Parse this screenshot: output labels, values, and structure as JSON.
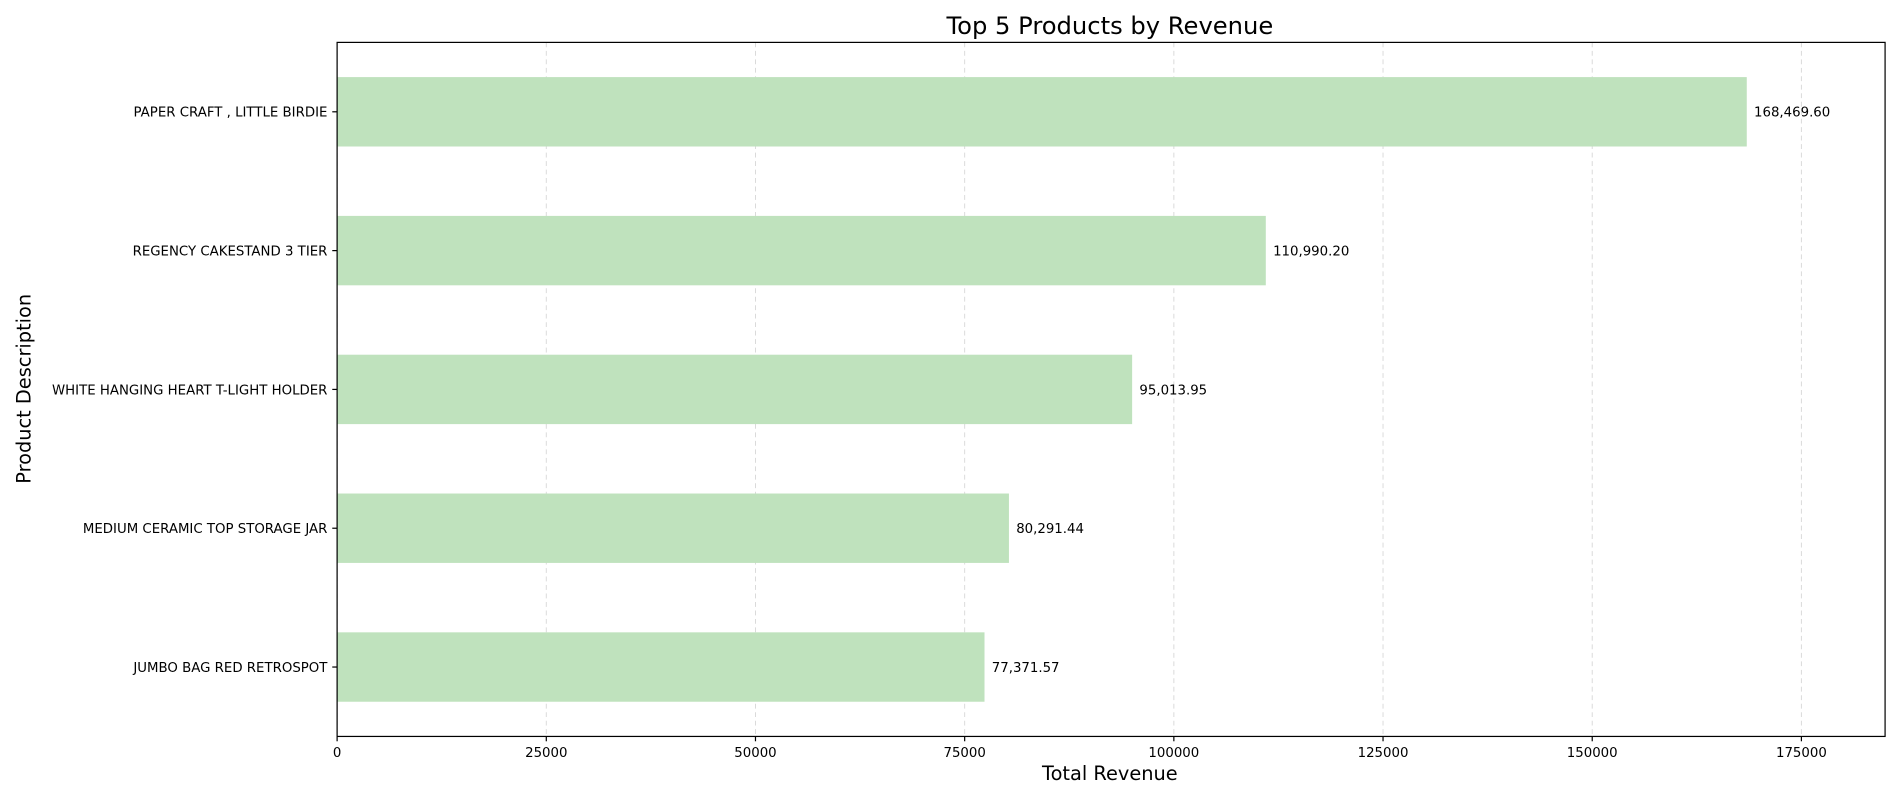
{
  "chart_data": {
    "type": "bar",
    "orientation": "horizontal",
    "title": "Top 5 Products by Revenue",
    "xlabel": "Total Revenue",
    "ylabel": "Product Description",
    "categories": [
      "PAPER CRAFT , LITTLE BIRDIE",
      "REGENCY CAKESTAND 3 TIER",
      "WHITE HANGING HEART T-LIGHT HOLDER",
      "MEDIUM CERAMIC TOP STORAGE JAR",
      "JUMBO BAG RED RETROSPOT"
    ],
    "values": [
      168469.6,
      110990.2,
      95013.95,
      80291.44,
      77371.57
    ],
    "value_labels": [
      "168,469.60",
      "110,990.20",
      "95,013.95",
      "80,291.44",
      "77,371.57"
    ],
    "xlim": [
      0,
      185000
    ],
    "xticks": [
      0,
      25000,
      50000,
      75000,
      100000,
      125000,
      150000,
      175000
    ],
    "xtick_labels": [
      "0",
      "25000",
      "50000",
      "75000",
      "100000",
      "125000",
      "150000",
      "175000"
    ],
    "grid": "x-dashed",
    "bar_color": "#bfe2bd"
  }
}
